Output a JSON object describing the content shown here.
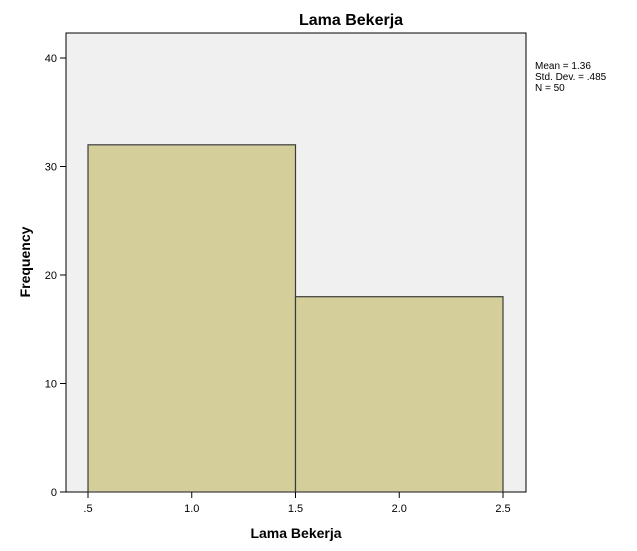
{
  "chart_data": {
    "type": "histogram",
    "title": "Lama Bekerja",
    "xlabel": "Lama Bekerja",
    "ylabel": "Frequency",
    "xlim": [
      0.5,
      2.5
    ],
    "ylim": [
      0,
      42
    ],
    "xticks": [
      {
        "value": 0.5,
        "label": ".5"
      },
      {
        "value": 1.0,
        "label": "1.0"
      },
      {
        "value": 1.5,
        "label": "1.5"
      },
      {
        "value": 2.0,
        "label": "2.0"
      },
      {
        "value": 2.5,
        "label": "2.5"
      }
    ],
    "yticks": [
      0,
      10,
      20,
      30,
      40
    ],
    "bins": [
      {
        "x0": 0.5,
        "x1": 1.5,
        "count": 32
      },
      {
        "x0": 1.5,
        "x1": 2.5,
        "count": 18
      }
    ],
    "stats": [
      "Mean = 1.36",
      "Std. Dev. = .485",
      "N = 50"
    ],
    "grid": false,
    "colors": {
      "bar_fill": "#d3ce9a",
      "bar_stroke": "#3c3c3c",
      "plot_background": "#f0f0f0",
      "axis": "#000000"
    }
  }
}
